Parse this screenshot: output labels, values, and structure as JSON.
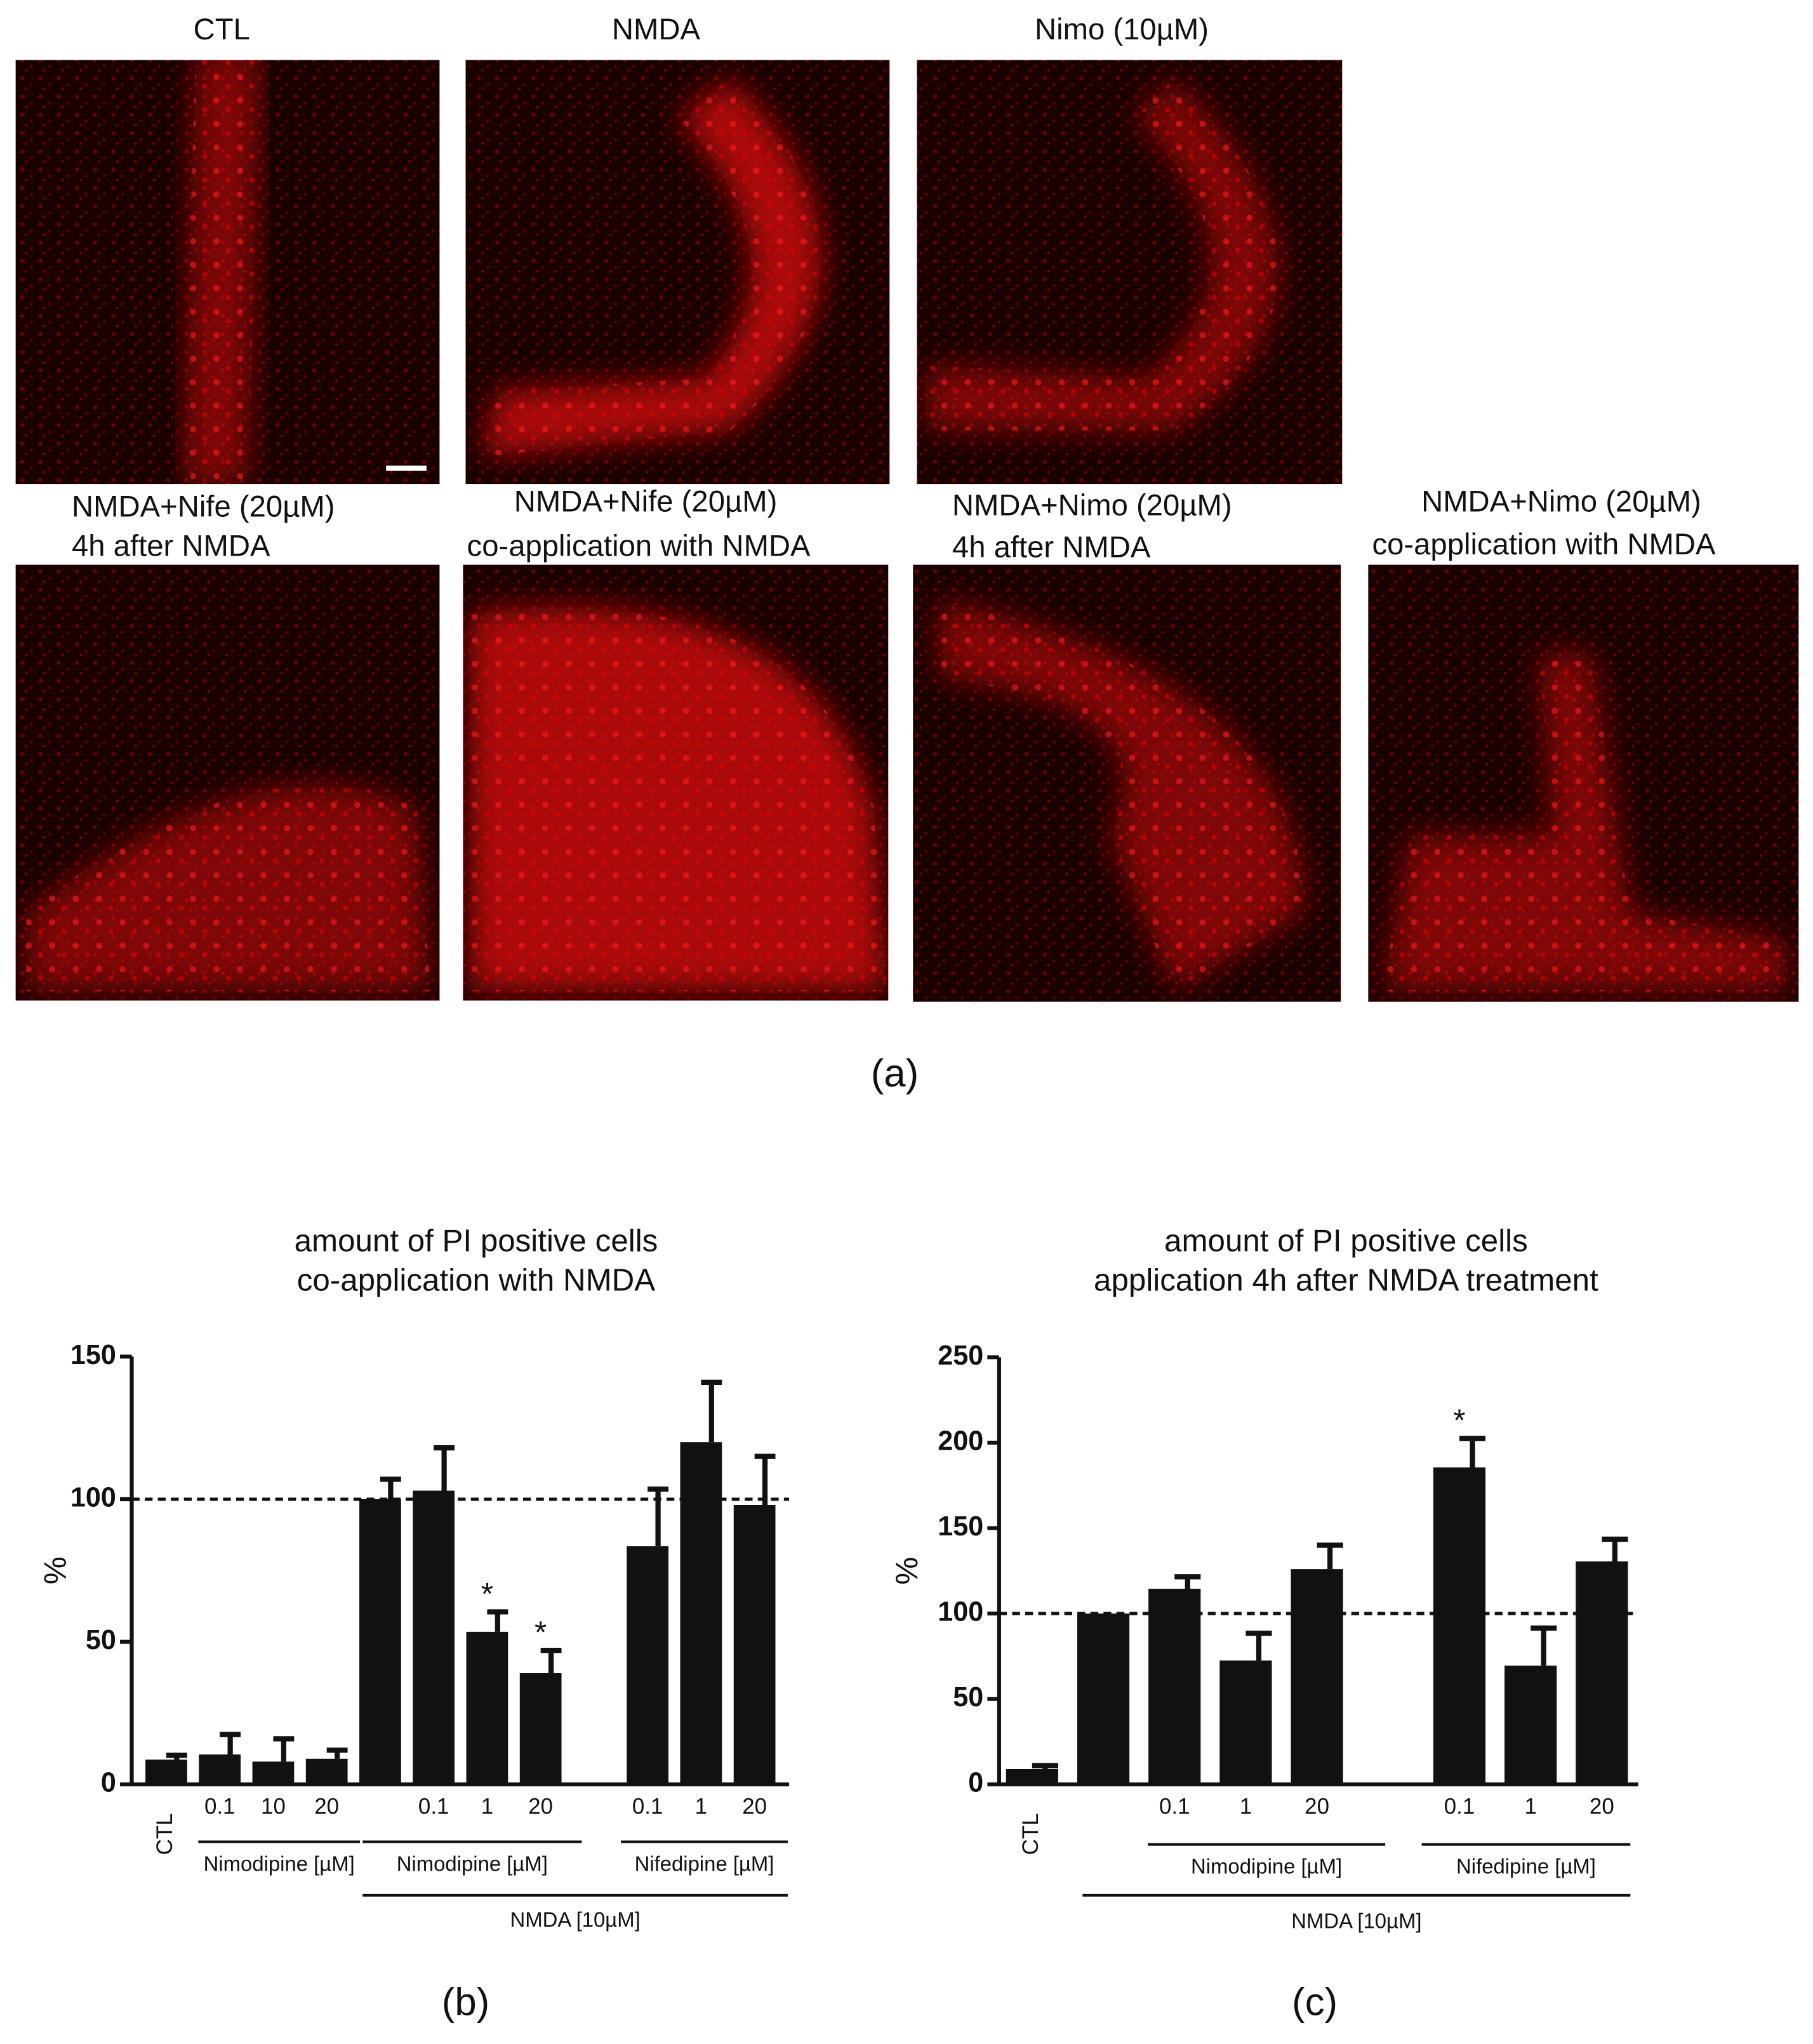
{
  "panel_a": {
    "images": [
      {
        "label_lines": [
          "CTL"
        ]
      },
      {
        "label_lines": [
          "NMDA"
        ]
      },
      {
        "label_lines": [
          "Nimo (10µM)"
        ]
      },
      {
        "label_lines": [
          "NMDA+Nife (20µM)",
          "4h after NMDA"
        ]
      },
      {
        "label_lines": [
          "NMDA+Nife (20µM)",
          "co-application with NMDA"
        ]
      },
      {
        "label_lines": [
          "NMDA+Nimo (20µM)",
          "4h after NMDA"
        ]
      },
      {
        "label_lines": [
          "NMDA+Nimo (20µM)",
          "co-application with NMDA"
        ]
      }
    ],
    "caption": "(a)"
  },
  "chart_data": [
    {
      "type": "bar",
      "title": "amount of PI positive cells",
      "subtitle": "co-application with NMDA",
      "ylabel": "%",
      "panel_label": "(b)",
      "categories": [
        "CTL",
        "0.1",
        "10",
        "20",
        null,
        "0.1",
        "1",
        "20",
        null,
        "0.1",
        "1",
        "20"
      ],
      "values": [
        8.7,
        10.5,
        8,
        9,
        100,
        103,
        53.5,
        39,
        null,
        83.5,
        120,
        98
      ],
      "errors": [
        1.5,
        7,
        8,
        3,
        7,
        15,
        7,
        8,
        null,
        20,
        21,
        17
      ],
      "color": "#111111",
      "ylim": [
        0,
        150
      ],
      "yticks": [
        0,
        50,
        100,
        150
      ],
      "reference_line": 100,
      "annotations": [
        "*",
        "*"
      ],
      "group_labels": [
        "Nimodipine [µM]",
        "Nimodipine [µM]",
        "Nifedipine [µM]",
        "NMDA [10µM]"
      ]
    },
    {
      "type": "bar",
      "title": "amount of PI positive cells",
      "subtitle": "application 4h after NMDA treatment",
      "ylabel": "%",
      "panel_label": "(c)",
      "categories": [
        "CTL",
        null,
        "0.1",
        "1",
        "20",
        null,
        "0.1",
        "1",
        "20"
      ],
      "values": [
        9,
        100,
        114.5,
        72.5,
        126,
        null,
        185.5,
        69.5,
        130.5
      ],
      "errors": [
        2,
        null,
        7,
        16,
        14,
        null,
        17,
        22,
        13
      ],
      "color": "#111111",
      "ylim": [
        0,
        250
      ],
      "yticks": [
        0,
        50,
        100,
        150,
        200,
        250
      ],
      "reference_line": 100,
      "annotations": [
        "*"
      ],
      "group_labels": [
        "Nimodipine [µM]",
        "Nifedipine [µM]",
        "NMDA [10µM]"
      ]
    }
  ]
}
